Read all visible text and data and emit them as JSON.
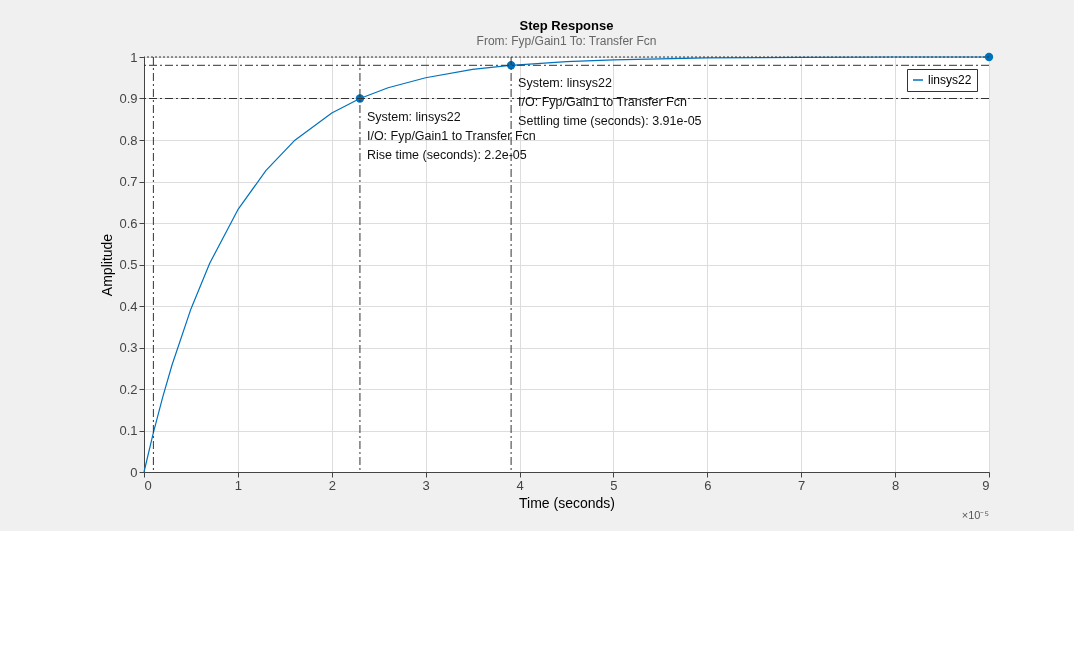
{
  "chart_data": {
    "type": "line",
    "title": "Step Response",
    "subtitle": "From: Fyp/Gain1  To: Transfer Fcn",
    "xlabel": "Time (seconds)",
    "ylabel": "Amplitude",
    "xlim": [
      0,
      9
    ],
    "ylim": [
      0,
      1
    ],
    "xticks": [
      0,
      1,
      2,
      3,
      4,
      5,
      6,
      7,
      8,
      9
    ],
    "yticks": [
      0,
      0.1,
      0.2,
      0.3,
      0.4,
      0.5,
      0.6,
      0.7,
      0.8,
      0.9,
      1
    ],
    "grid": true,
    "legend": "top right",
    "line_style": "solid",
    "series": [
      {
        "name": "linsys22",
        "color": "#0072bd",
        "marker": "none",
        "x": [
          0,
          0.1,
          0.2,
          0.3,
          0.5,
          0.7,
          1,
          1.3,
          1.6,
          2,
          2.3,
          2.6,
          3,
          3.5,
          3.91,
          4.5,
          5,
          6,
          7,
          8,
          9
        ],
        "values": [
          0,
          0.095,
          0.181,
          0.259,
          0.393,
          0.503,
          0.632,
          0.727,
          0.798,
          0.865,
          0.9,
          0.926,
          0.95,
          0.97,
          0.98,
          0.989,
          0.993,
          0.998,
          0.999,
          1,
          1
        ]
      },
      {
        "type": "scatter",
        "color": "#0072bd",
        "marker": "circle",
        "x": [
          2.3,
          3.91,
          9
        ],
        "values": [
          0.9,
          0.98,
          1
        ]
      }
    ],
    "ref_lines": [
      {
        "axis": "x",
        "value": 0.1,
        "color": "#333333",
        "line_style": "dashed"
      },
      {
        "axis": "x",
        "value": 2.3,
        "color": "#333333",
        "line_style": "dashed"
      },
      {
        "axis": "x",
        "value": 3.91,
        "color": "#333333",
        "line_style": "dashed"
      },
      {
        "axis": "y",
        "value": 0.9,
        "color": "#333333",
        "line_style": "dashed"
      },
      {
        "axis": "y",
        "value": 0.98,
        "color": "#333333",
        "line_style": "dashed"
      },
      {
        "axis": "y",
        "value": 1,
        "color": "#333333",
        "line_style": "dotted"
      }
    ],
    "annotations": [
      {
        "text": "System: linsys22\nI/O: Fyp/Gain1 to Transfer Fcn\nRise time (seconds): 2.2e-05",
        "x": 2.3,
        "y": 0.9
      },
      {
        "text": "System: linsys22\nI/O: Fyp/Gain1 to Transfer Fcn\nSettling time (seconds): 3.91e-05",
        "x": 3.91,
        "y": 0.98
      },
      "×10⁻⁵"
    ]
  }
}
